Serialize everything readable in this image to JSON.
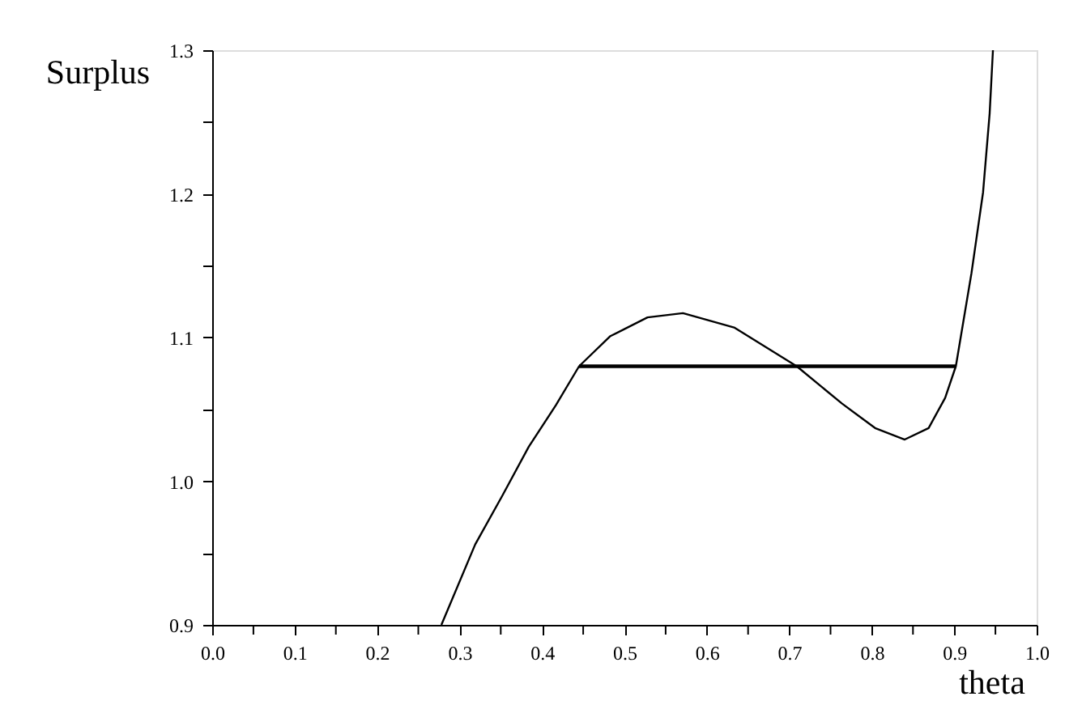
{
  "chart_data": {
    "type": "line",
    "xlabel": "theta",
    "ylabel": "Surplus",
    "xlim": [
      0,
      1.0
    ],
    "ylim": [
      0.9,
      1.3
    ],
    "xticks": [
      {
        "value": 0,
        "label": "0.0"
      },
      {
        "value": 0.05,
        "label": null
      },
      {
        "value": 0.1,
        "label": "0.1"
      },
      {
        "value": 0.15,
        "label": null
      },
      {
        "value": 0.2,
        "label": "0.2"
      },
      {
        "value": 0.25,
        "label": null
      },
      {
        "value": 0.3,
        "label": "0.3"
      },
      {
        "value": 0.35,
        "label": null
      },
      {
        "value": 0.4,
        "label": "0.4"
      },
      {
        "value": 0.45,
        "label": null
      },
      {
        "value": 0.5,
        "label": "0.5"
      },
      {
        "value": 0.55,
        "label": null
      },
      {
        "value": 0.6,
        "label": "0.6"
      },
      {
        "value": 0.65,
        "label": null
      },
      {
        "value": 0.7,
        "label": "0.7"
      },
      {
        "value": 0.75,
        "label": null
      },
      {
        "value": 0.8,
        "label": "0.8"
      },
      {
        "value": 0.85,
        "label": null
      },
      {
        "value": 0.9,
        "label": "0.9"
      },
      {
        "value": 0.95,
        "label": null
      },
      {
        "value": 1.0,
        "label": "1.0"
      }
    ],
    "yticks": [
      {
        "value": 0.9,
        "label": "0.9"
      },
      {
        "value": 0.95,
        "label": null
      },
      {
        "value": 1.0,
        "label": "1.0"
      },
      {
        "value": 1.05,
        "label": null
      },
      {
        "value": 1.1,
        "label": "1.1"
      },
      {
        "value": 1.15,
        "label": null
      },
      {
        "value": 1.2,
        "label": "1.2"
      },
      {
        "value": 1.25,
        "label": null
      },
      {
        "value": 1.3,
        "label": "1.3"
      }
    ],
    "grid": false,
    "marker": "none",
    "line_style": "solid",
    "series": [
      {
        "color": "#000000",
        "x": [
          0.278,
          0.319,
          0.352,
          0.384,
          0.417,
          0.445,
          0.483,
          0.528,
          0.571,
          0.633,
          0.709,
          0.764,
          0.804,
          0.84,
          0.869,
          0.889,
          0.902,
          0.921,
          0.935,
          0.943,
          0.947
        ],
        "values": [
          0.9,
          0.956,
          0.99,
          1.024,
          1.053,
          1.08,
          1.101,
          1.114,
          1.117,
          1.107,
          1.08,
          1.054,
          1.037,
          1.029,
          1.037,
          1.058,
          1.08,
          1.145,
          1.201,
          1.256,
          1.3
        ]
      },
      {
        "color": "#000000",
        "x": [
          0.445,
          0.902
        ],
        "values": [
          1.08,
          1.08
        ]
      }
    ]
  }
}
